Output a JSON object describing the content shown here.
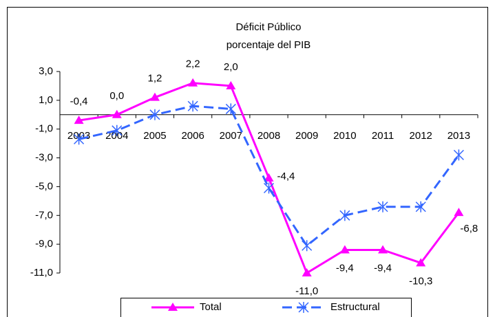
{
  "chart_data": {
    "type": "line",
    "title": "Déficit Público",
    "subtitle": "porcentaje del PIB",
    "categories": [
      "2003",
      "2004",
      "2005",
      "2006",
      "2007",
      "2008",
      "2009",
      "2010",
      "2011",
      "2012",
      "2013"
    ],
    "series": [
      {
        "name": "Total",
        "color": "#ff00ff",
        "marker": "triangle",
        "values": [
          -0.4,
          0.0,
          1.2,
          2.2,
          2.0,
          -4.4,
          -11.0,
          -9.4,
          -9.4,
          -10.3,
          -6.8
        ],
        "value_labels": [
          "-0,4",
          "0,0",
          "1,2",
          "2,2",
          "2,0",
          "-4,4",
          "-11,0",
          "-9,4",
          "-9,4",
          "-10,3",
          "-6,8"
        ]
      },
      {
        "name": "Estructural",
        "color": "#3366ff",
        "marker": "asterisk",
        "dashed": true,
        "values": [
          -1.7,
          -1.1,
          0.0,
          0.6,
          0.4,
          -5.1,
          -9.1,
          -7.0,
          -6.4,
          -6.4,
          -2.8
        ]
      }
    ],
    "ylim": [
      -11,
      3
    ],
    "yticks": [
      {
        "value": 3,
        "label": "3,0"
      },
      {
        "value": 1,
        "label": "1,0"
      },
      {
        "value": -1,
        "label": "-1,0"
      },
      {
        "value": -3,
        "label": "-3,0"
      },
      {
        "value": -5,
        "label": "-5,0"
      },
      {
        "value": -7,
        "label": "-7,0"
      },
      {
        "value": -9,
        "label": "-9,0"
      },
      {
        "value": -11,
        "label": "-11,0"
      }
    ],
    "legend": "bottom"
  }
}
